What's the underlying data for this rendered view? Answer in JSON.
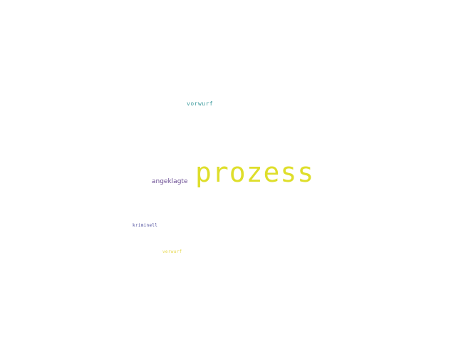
{
  "words": [
    {
      "text": "prozess",
      "color": "#dede2a"
    },
    {
      "text": "angeklagte",
      "color": "#6a4c93"
    },
    {
      "text": "vorwurf",
      "color": "#3b9a9c"
    },
    {
      "text": "kriminell",
      "color": "#4a4a9a"
    },
    {
      "text": "verwurf",
      "color": "#e6d84a"
    }
  ]
}
